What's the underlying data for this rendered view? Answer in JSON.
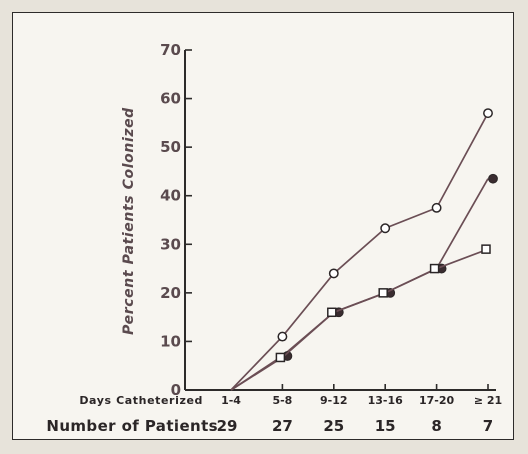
{
  "chart_data": {
    "type": "line",
    "ylabel": "Percent Patients Colonized",
    "ylim": [
      0,
      70
    ],
    "yticks": [
      0,
      10,
      20,
      30,
      40,
      50,
      60,
      70
    ],
    "xlabel": "Days Catheterized",
    "categories": [
      "1-4",
      "5-8",
      "9-12",
      "13-16",
      "17-20",
      "≥ 21"
    ],
    "patients_label": "Number of Patients",
    "patient_counts": [
      "29",
      "27",
      "25",
      "15",
      "8",
      "7"
    ],
    "colors": {
      "line": "#6b4e55",
      "axis": "#2d2b2a"
    },
    "series": [
      {
        "marker": "open-circle",
        "values": [
          0,
          11,
          24,
          33.3,
          37.5,
          57
        ]
      },
      {
        "marker": "filled-circle",
        "values": [
          0,
          7,
          16,
          20,
          25,
          43.5
        ]
      },
      {
        "marker": "open-square",
        "values": [
          0,
          6.7,
          16,
          20,
          25,
          29
        ]
      }
    ]
  }
}
